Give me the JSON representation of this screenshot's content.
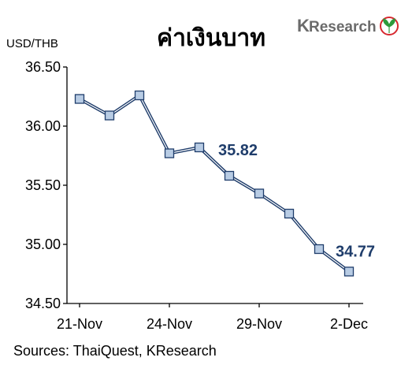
{
  "chart_data": {
    "type": "line",
    "title": "ค่าเงินบาท",
    "ylabel": "USD/THB",
    "ylim": [
      34.5,
      36.5
    ],
    "yticks": [
      "36.50",
      "36.00",
      "35.50",
      "35.00",
      "34.50"
    ],
    "ytick_values": [
      36.5,
      36.0,
      35.5,
      35.0,
      34.5
    ],
    "xtick_labels": [
      "21-Nov",
      "24-Nov",
      "29-Nov",
      "2-Dec"
    ],
    "xtick_index": [
      0,
      3,
      6,
      9
    ],
    "series": [
      {
        "values": [
          36.23,
          36.09,
          36.26,
          35.77,
          35.82,
          35.58,
          35.43,
          35.26,
          34.96,
          34.77
        ],
        "color": "#1f3d6b",
        "marker_fill": "#b8cce4"
      }
    ],
    "data_labels": [
      {
        "index": 4,
        "text": "35.82"
      },
      {
        "index": 9,
        "text": "34.77"
      }
    ],
    "grid": false,
    "legend": "none"
  },
  "source": "Sources: ThaiQuest, KResearch",
  "logo": {
    "text_k": "K",
    "text_rest": "Research",
    "icon": "kasikorn-leaf-icon",
    "color": "#6b6b6b",
    "accent": "#2e9a3c",
    "icon_red": "#d7282f"
  }
}
